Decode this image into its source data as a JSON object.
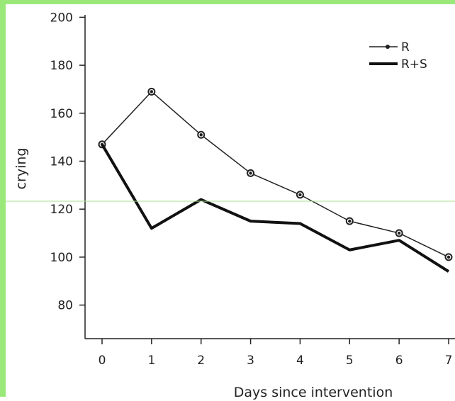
{
  "chart_data": {
    "type": "line",
    "xlabel": "Days since intervention",
    "ylabel": "crying",
    "x": [
      0,
      1,
      2,
      3,
      4,
      5,
      6,
      7
    ],
    "xlim": [
      -0.2,
      7.1
    ],
    "ylim": [
      66,
      201
    ],
    "yticks": [
      80,
      100,
      120,
      140,
      160,
      180,
      200
    ],
    "grid": false,
    "legend_position": "top-right",
    "series": [
      {
        "name": "R",
        "values": [
          147,
          169,
          151,
          135,
          126,
          115,
          110,
          100
        ],
        "color": "#222222",
        "marker": "circle",
        "line": "thin"
      },
      {
        "name": "R+S",
        "values": [
          147,
          112,
          124,
          115,
          114,
          103,
          107,
          94
        ],
        "color": "#111111",
        "marker": "none",
        "line": "thick"
      }
    ]
  },
  "colors": {
    "frame_accent": "#9be87a",
    "divider_line": "#a8e08c"
  }
}
